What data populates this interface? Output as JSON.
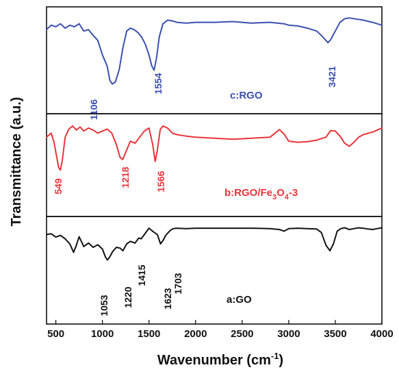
{
  "chart_data": {
    "type": "line",
    "xlabel_main": "Wavenumber (cm",
    "xlabel_sup": "-1",
    "xlabel_end": ")",
    "ylabel": "Transmittance (a.u.)",
    "xlim": [
      400,
      4000
    ],
    "x_ticks": [
      "500",
      "1000",
      "1500",
      "2000",
      "2500",
      "3000",
      "3500",
      "4000"
    ],
    "colors": {
      "c": "#3a4fb0",
      "b": "#e8343a",
      "a": "#111111"
    },
    "series": [
      {
        "key": "c",
        "label_pre": "c:RGO",
        "peaks": [
          "1106",
          "1554",
          "3421"
        ],
        "x": [
          400,
          450,
          500,
          550,
          600,
          650,
          700,
          750,
          800,
          850,
          900,
          950,
          1000,
          1050,
          1080,
          1106,
          1140,
          1180,
          1220,
          1260,
          1300,
          1340,
          1380,
          1420,
          1460,
          1500,
          1530,
          1554,
          1580,
          1610,
          1650,
          1700,
          1750,
          1800,
          1900,
          2000,
          2200,
          2400,
          2600,
          2800,
          2950,
          3000,
          3100,
          3200,
          3300,
          3350,
          3400,
          3421,
          3450,
          3500,
          3550,
          3600,
          3650,
          3700,
          3800,
          3900,
          4000
        ],
        "y": [
          0.8,
          0.86,
          0.84,
          0.88,
          0.82,
          0.86,
          0.84,
          0.88,
          0.78,
          0.8,
          0.72,
          0.65,
          0.45,
          0.3,
          0.1,
          0.05,
          0.08,
          0.25,
          0.55,
          0.78,
          0.82,
          0.8,
          0.76,
          0.7,
          0.6,
          0.45,
          0.3,
          0.24,
          0.4,
          0.7,
          0.88,
          0.93,
          0.92,
          0.9,
          0.89,
          0.9,
          0.9,
          0.91,
          0.89,
          0.9,
          0.88,
          0.86,
          0.85,
          0.82,
          0.78,
          0.72,
          0.65,
          0.62,
          0.66,
          0.78,
          0.9,
          0.95,
          0.96,
          0.95,
          0.93,
          0.9,
          0.86
        ]
      },
      {
        "key": "b",
        "label_pre": "b:RGO/Fe",
        "label_sub1": "3",
        "label_mid": "O",
        "label_sub2": "4",
        "label_post": "-3",
        "peaks": [
          "549",
          "1218",
          "1566"
        ],
        "x": [
          400,
          450,
          480,
          510,
          530,
          549,
          570,
          600,
          640,
          680,
          720,
          760,
          800,
          850,
          900,
          950,
          1000,
          1050,
          1100,
          1150,
          1190,
          1218,
          1250,
          1300,
          1350,
          1400,
          1450,
          1500,
          1540,
          1566,
          1590,
          1620,
          1650,
          1700,
          1750,
          1800,
          1900,
          2000,
          2200,
          2400,
          2600,
          2800,
          2900,
          2950,
          3000,
          3100,
          3200,
          3300,
          3400,
          3450,
          3500,
          3550,
          3600,
          3650,
          3700,
          3750,
          3800,
          3900,
          4000
        ],
        "y": [
          0.7,
          0.78,
          0.6,
          0.3,
          0.1,
          0.05,
          0.25,
          0.7,
          0.86,
          0.92,
          0.84,
          0.9,
          0.82,
          0.88,
          0.84,
          0.78,
          0.82,
          0.86,
          0.78,
          0.55,
          0.3,
          0.26,
          0.4,
          0.62,
          0.58,
          0.7,
          0.82,
          0.88,
          0.55,
          0.22,
          0.45,
          0.85,
          0.92,
          0.88,
          0.78,
          0.75,
          0.72,
          0.7,
          0.68,
          0.66,
          0.68,
          0.7,
          0.85,
          0.76,
          0.62,
          0.6,
          0.61,
          0.64,
          0.7,
          0.83,
          0.82,
          0.72,
          0.58,
          0.52,
          0.6,
          0.7,
          0.75,
          0.8,
          0.88
        ]
      },
      {
        "key": "a",
        "label_pre": "a:GO",
        "peaks": [
          "1053",
          "1220",
          "1415",
          "1623",
          "1703"
        ],
        "x": [
          400,
          450,
          500,
          550,
          600,
          650,
          690,
          720,
          750,
          800,
          850,
          900,
          950,
          1000,
          1030,
          1053,
          1080,
          1110,
          1150,
          1190,
          1220,
          1260,
          1300,
          1350,
          1390,
          1415,
          1450,
          1500,
          1550,
          1590,
          1623,
          1650,
          1680,
          1703,
          1730,
          1760,
          1800,
          1900,
          2000,
          2200,
          2400,
          2600,
          2800,
          2900,
          2950,
          3000,
          3100,
          3200,
          3300,
          3350,
          3400,
          3442,
          3480,
          3520,
          3560,
          3600,
          3650,
          3700,
          3750,
          3800,
          3850,
          3900,
          3950,
          4000
        ],
        "y": [
          0.8,
          0.82,
          0.74,
          0.78,
          0.7,
          0.58,
          0.38,
          0.55,
          0.75,
          0.52,
          0.6,
          0.5,
          0.56,
          0.46,
          0.28,
          0.2,
          0.28,
          0.4,
          0.5,
          0.48,
          0.42,
          0.58,
          0.64,
          0.6,
          0.72,
          0.7,
          0.8,
          0.95,
          0.86,
          0.8,
          0.58,
          0.66,
          0.78,
          0.84,
          0.9,
          0.94,
          0.95,
          0.94,
          0.95,
          0.95,
          0.95,
          0.95,
          0.94,
          0.92,
          0.88,
          0.94,
          0.95,
          0.94,
          0.93,
          0.85,
          0.55,
          0.42,
          0.58,
          0.88,
          0.94,
          0.96,
          0.92,
          0.94,
          0.96,
          0.95,
          0.93,
          0.92,
          0.94,
          0.96
        ]
      }
    ]
  }
}
